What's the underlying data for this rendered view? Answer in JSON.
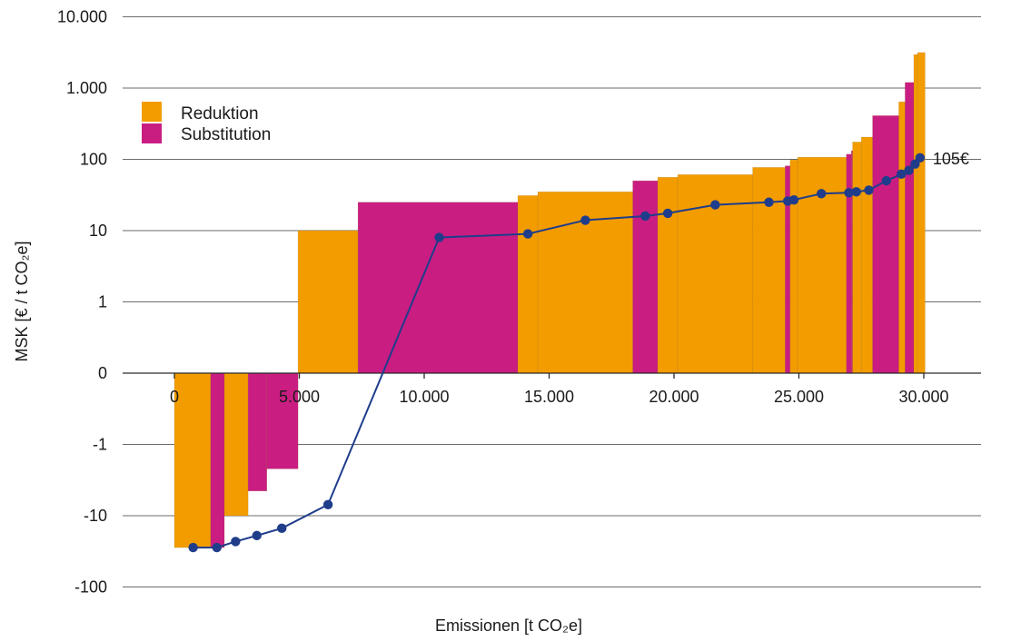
{
  "chart_data": {
    "type": "bar",
    "subtype": "marginal-abatement-cost-curve",
    "y_scale": "symlog",
    "title": "",
    "xlabel": "Emissionen [t CO₂e]",
    "ylabel": "MSK [€ / t CO₂e]",
    "xlim": [
      -800,
      34000
    ],
    "ylim": [
      -100,
      10000
    ],
    "x_ticks": [
      {
        "value": 0,
        "label": "0"
      },
      {
        "value": 5000,
        "label": "5.000"
      },
      {
        "value": 10000,
        "label": "10.000"
      },
      {
        "value": 15000,
        "label": "15.000"
      },
      {
        "value": 20000,
        "label": "20.000"
      },
      {
        "value": 25000,
        "label": "25.000"
      },
      {
        "value": 30000,
        "label": "30.000"
      }
    ],
    "y_ticks": [
      {
        "value": 10000,
        "label": "10.000"
      },
      {
        "value": 1000,
        "label": "1.000"
      },
      {
        "value": 100,
        "label": "100"
      },
      {
        "value": 10,
        "label": "10"
      },
      {
        "value": 1,
        "label": "1"
      },
      {
        "value": 0,
        "label": "0"
      },
      {
        "value": -1,
        "label": "-1"
      },
      {
        "value": -10,
        "label": "-10"
      },
      {
        "value": -100,
        "label": "-100"
      }
    ],
    "grid": true,
    "legend_position": "top-left",
    "legend": [
      {
        "label": "Reduktion",
        "color": "#f39c00"
      },
      {
        "label": "Substitution",
        "color": "#c91d82"
      }
    ],
    "bars": [
      {
        "x0": 0,
        "x1": 1450,
        "value": -28,
        "category": "Reduktion"
      },
      {
        "x0": 1450,
        "x1": 2000,
        "value": -28,
        "category": "Substitution"
      },
      {
        "x0": 2000,
        "x1": 2950,
        "value": -10,
        "category": "Reduktion"
      },
      {
        "x0": 2950,
        "x1": 3700,
        "value": -4.5,
        "category": "Substitution"
      },
      {
        "x0": 3700,
        "x1": 4950,
        "value": -2.2,
        "category": "Substitution"
      },
      {
        "x0": 4950,
        "x1": 7350,
        "value": 10,
        "category": "Reduktion"
      },
      {
        "x0": 7350,
        "x1": 13750,
        "value": 25,
        "category": "Substitution"
      },
      {
        "x0": 13750,
        "x1": 14550,
        "value": 31,
        "category": "Reduktion"
      },
      {
        "x0": 14550,
        "x1": 18350,
        "value": 35,
        "category": "Reduktion"
      },
      {
        "x0": 18350,
        "x1": 19350,
        "value": 50,
        "category": "Substitution"
      },
      {
        "x0": 19350,
        "x1": 20150,
        "value": 56,
        "category": "Reduktion"
      },
      {
        "x0": 20150,
        "x1": 23150,
        "value": 61,
        "category": "Reduktion"
      },
      {
        "x0": 23150,
        "x1": 24450,
        "value": 77,
        "category": "Reduktion"
      },
      {
        "x0": 24450,
        "x1": 24650,
        "value": 81,
        "category": "Substitution"
      },
      {
        "x0": 24650,
        "x1": 24950,
        "value": 98,
        "category": "Reduktion"
      },
      {
        "x0": 24950,
        "x1": 26900,
        "value": 107,
        "category": "Reduktion"
      },
      {
        "x0": 26900,
        "x1": 27100,
        "value": 118,
        "category": "Substitution"
      },
      {
        "x0": 27100,
        "x1": 27150,
        "value": 132,
        "category": "Substitution"
      },
      {
        "x0": 27150,
        "x1": 27500,
        "value": 175,
        "category": "Reduktion"
      },
      {
        "x0": 27500,
        "x1": 27950,
        "value": 205,
        "category": "Reduktion"
      },
      {
        "x0": 27950,
        "x1": 29000,
        "value": 410,
        "category": "Substitution"
      },
      {
        "x0": 29000,
        "x1": 29250,
        "value": 640,
        "category": "Reduktion"
      },
      {
        "x0": 29250,
        "x1": 29600,
        "value": 1200,
        "category": "Substitution"
      },
      {
        "x0": 29600,
        "x1": 29750,
        "value": 2950,
        "category": "Reduktion"
      },
      {
        "x0": 29750,
        "x1": 30050,
        "value": 3150,
        "category": "Reduktion"
      }
    ],
    "series": [
      {
        "type": "line",
        "color": "#1f3d8a",
        "points": [
          {
            "x": 750,
            "y": -28
          },
          {
            "x": 1700,
            "y": -28
          },
          {
            "x": 2450,
            "y": -23
          },
          {
            "x": 3300,
            "y": -19
          },
          {
            "x": 4300,
            "y": -15
          },
          {
            "x": 6150,
            "y": -7
          },
          {
            "x": 10600,
            "y": 8
          },
          {
            "x": 14150,
            "y": 9
          },
          {
            "x": 16450,
            "y": 14
          },
          {
            "x": 18850,
            "y": 16
          },
          {
            "x": 19750,
            "y": 17.5
          },
          {
            "x": 21650,
            "y": 23
          },
          {
            "x": 23800,
            "y": 25
          },
          {
            "x": 24550,
            "y": 26
          },
          {
            "x": 24800,
            "y": 27
          },
          {
            "x": 25900,
            "y": 33
          },
          {
            "x": 27000,
            "y": 34
          },
          {
            "x": 27300,
            "y": 35
          },
          {
            "x": 27800,
            "y": 37
          },
          {
            "x": 28500,
            "y": 50
          },
          {
            "x": 29100,
            "y": 62
          },
          {
            "x": 29400,
            "y": 70
          },
          {
            "x": 29650,
            "y": 86
          },
          {
            "x": 29850,
            "y": 105
          }
        ]
      }
    ],
    "annotations": [
      {
        "text": "105€",
        "x": 29850,
        "y": 105
      }
    ]
  }
}
